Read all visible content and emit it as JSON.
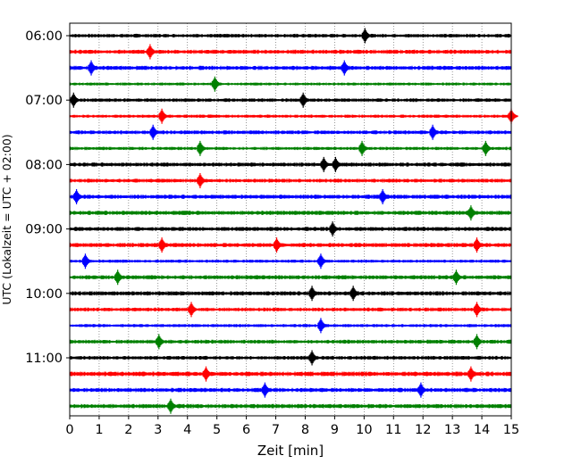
{
  "chart_data": {
    "type": "line",
    "title": "",
    "xlabel": "Zeit  [min]",
    "ylabel": "UTC (Lokalzeit = UTC + 02:00)",
    "xlim": [
      0,
      15
    ],
    "x_ticks": [
      0,
      1,
      2,
      3,
      4,
      5,
      6,
      7,
      8,
      9,
      10,
      11,
      12,
      13,
      14,
      15
    ],
    "y_tick_labels": [
      "06:00",
      "07:00",
      "08:00",
      "09:00",
      "10:00",
      "11:00"
    ],
    "grid": "vertical dotted lines at each minute",
    "trace_interval_minutes": 15,
    "start_time": "06:00",
    "colors": [
      "#000000",
      "#ff0000",
      "#0000ff",
      "#008000"
    ],
    "series": [
      {
        "start": "06:00",
        "color": "#000000",
        "events_min": [
          10.0
        ]
      },
      {
        "start": "06:15",
        "color": "#ff0000",
        "events_min": [
          2.7
        ]
      },
      {
        "start": "06:30",
        "color": "#0000ff",
        "events_min": [
          0.7,
          9.3
        ]
      },
      {
        "start": "06:45",
        "color": "#008000",
        "events_min": [
          4.9
        ]
      },
      {
        "start": "07:00",
        "color": "#000000",
        "events_min": [
          0.1,
          7.9
        ]
      },
      {
        "start": "07:15",
        "color": "#ff0000",
        "events_min": [
          3.1,
          15.0
        ]
      },
      {
        "start": "07:30",
        "color": "#0000ff",
        "events_min": [
          2.8,
          12.3
        ]
      },
      {
        "start": "07:45",
        "color": "#008000",
        "events_min": [
          4.4,
          9.9,
          14.1
        ]
      },
      {
        "start": "08:00",
        "color": "#000000",
        "events_min": [
          8.6,
          9.0
        ]
      },
      {
        "start": "08:15",
        "color": "#ff0000",
        "events_min": [
          4.4
        ]
      },
      {
        "start": "08:30",
        "color": "#0000ff",
        "events_min": [
          0.2,
          10.6
        ]
      },
      {
        "start": "08:45",
        "color": "#008000",
        "events_min": [
          13.6
        ]
      },
      {
        "start": "09:00",
        "color": "#000000",
        "events_min": [
          8.9
        ]
      },
      {
        "start": "09:15",
        "color": "#ff0000",
        "events_min": [
          3.1,
          7.0,
          13.8
        ]
      },
      {
        "start": "09:30",
        "color": "#0000ff",
        "events_min": [
          0.5,
          8.5
        ]
      },
      {
        "start": "09:45",
        "color": "#008000",
        "events_min": [
          1.6,
          13.1
        ]
      },
      {
        "start": "10:00",
        "color": "#000000",
        "events_min": [
          8.2,
          9.6
        ]
      },
      {
        "start": "10:15",
        "color": "#ff0000",
        "events_min": [
          4.1,
          13.8
        ]
      },
      {
        "start": "10:30",
        "color": "#0000ff",
        "events_min": [
          8.5
        ]
      },
      {
        "start": "10:45",
        "color": "#008000",
        "events_min": [
          3.0,
          13.8
        ]
      },
      {
        "start": "11:00",
        "color": "#000000",
        "events_min": [
          8.2
        ]
      },
      {
        "start": "11:15",
        "color": "#ff0000",
        "events_min": [
          4.6,
          13.6
        ]
      },
      {
        "start": "11:30",
        "color": "#0000ff",
        "events_min": [
          6.6,
          11.9
        ]
      },
      {
        "start": "11:45",
        "color": "#008000",
        "events_min": [
          3.4
        ]
      }
    ]
  }
}
